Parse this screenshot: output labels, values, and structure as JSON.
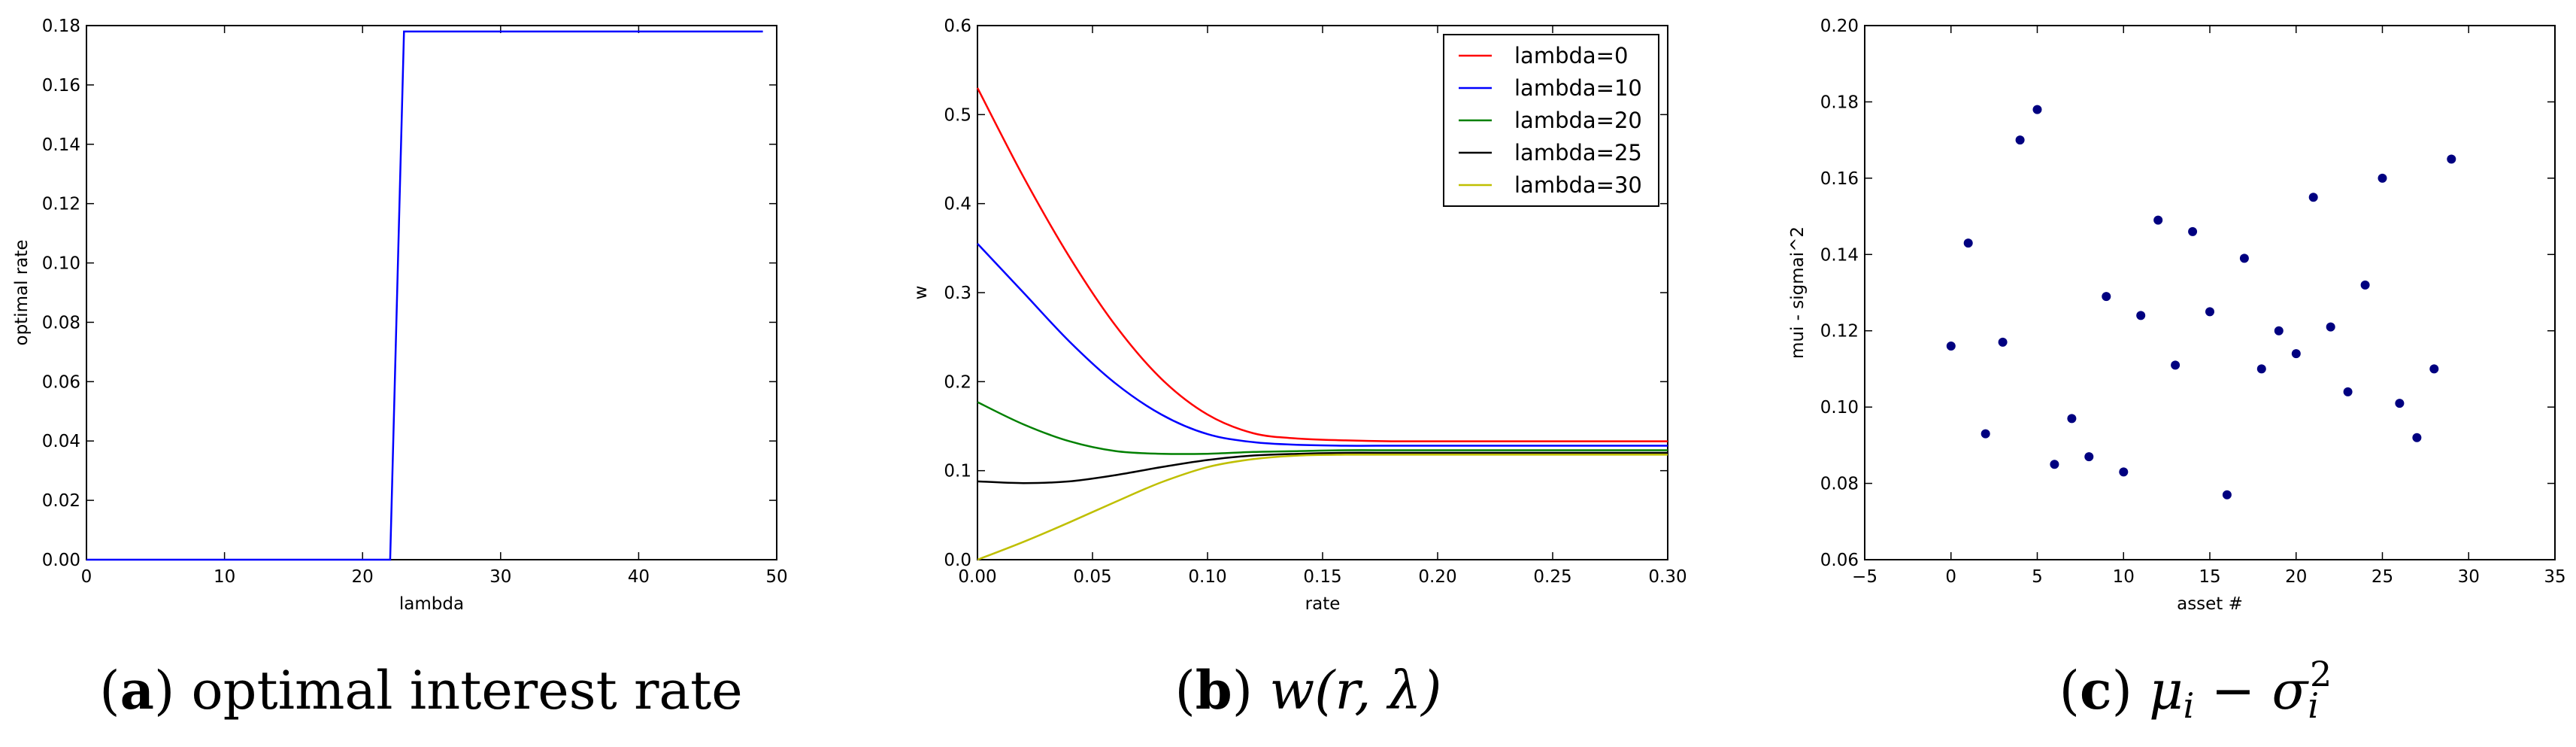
{
  "chart_data": [
    {
      "type": "line",
      "caption": {
        "letter": "a",
        "text": "optimal interest rate"
      },
      "xlabel": "lambda",
      "ylabel": "optimal rate",
      "xlim": [
        0,
        50
      ],
      "ylim": [
        0,
        0.18
      ],
      "xticks": [
        "0",
        "10",
        "20",
        "30",
        "40",
        "50"
      ],
      "yticks": [
        "0.00",
        "0.02",
        "0.04",
        "0.06",
        "0.08",
        "0.10",
        "0.12",
        "0.14",
        "0.16",
        "0.18"
      ],
      "color": "#0000ff",
      "series": [
        {
          "name": "optimal rate",
          "x": [
            0,
            1,
            2,
            3,
            4,
            5,
            6,
            7,
            8,
            9,
            10,
            11,
            12,
            13,
            14,
            15,
            16,
            17,
            18,
            19,
            20,
            21,
            22,
            23,
            24,
            25,
            26,
            27,
            28,
            29,
            30,
            31,
            32,
            33,
            34,
            35,
            36,
            37,
            38,
            39,
            40,
            41,
            42,
            43,
            44,
            45,
            46,
            47,
            48,
            49
          ],
          "y": [
            0,
            0,
            0,
            0,
            0,
            0,
            0,
            0,
            0,
            0,
            0,
            0,
            0,
            0,
            0,
            0,
            0,
            0,
            0,
            0,
            0,
            0,
            0,
            0.178,
            0.178,
            0.178,
            0.178,
            0.178,
            0.178,
            0.178,
            0.178,
            0.178,
            0.178,
            0.178,
            0.178,
            0.178,
            0.178,
            0.178,
            0.178,
            0.178,
            0.178,
            0.178,
            0.178,
            0.178,
            0.178,
            0.178,
            0.178,
            0.178,
            0.178,
            0.178
          ]
        }
      ]
    },
    {
      "type": "line",
      "caption": {
        "letter": "b",
        "math": "w(r, λ)"
      },
      "xlabel": "rate",
      "ylabel": "w",
      "xlim": [
        0,
        0.3
      ],
      "ylim": [
        0,
        0.6
      ],
      "xticks": [
        "0.00",
        "0.05",
        "0.10",
        "0.15",
        "0.20",
        "0.25",
        "0.30"
      ],
      "yticks": [
        "0.0",
        "0.1",
        "0.2",
        "0.3",
        "0.4",
        "0.5",
        "0.6"
      ],
      "legend_position": "top-right",
      "series": [
        {
          "name": "lambda=0",
          "color": "#ff0000",
          "x": [
            0,
            0.02,
            0.04,
            0.06,
            0.08,
            0.1,
            0.12,
            0.14,
            0.16,
            0.18,
            0.2,
            0.25,
            0.3
          ],
          "y": [
            0.53,
            0.43,
            0.34,
            0.263,
            0.203,
            0.163,
            0.142,
            0.136,
            0.134,
            0.133,
            0.133,
            0.133,
            0.133
          ]
        },
        {
          "name": "lambda=10",
          "color": "#0000ff",
          "x": [
            0,
            0.02,
            0.04,
            0.06,
            0.08,
            0.1,
            0.12,
            0.14,
            0.16,
            0.18,
            0.2,
            0.25,
            0.3
          ],
          "y": [
            0.355,
            0.3,
            0.245,
            0.198,
            0.163,
            0.141,
            0.132,
            0.129,
            0.128,
            0.128,
            0.128,
            0.128,
            0.128
          ]
        },
        {
          "name": "lambda=20",
          "color": "#008000",
          "x": [
            0,
            0.02,
            0.04,
            0.06,
            0.08,
            0.1,
            0.12,
            0.14,
            0.16,
            0.18,
            0.2,
            0.25,
            0.3
          ],
          "y": [
            0.177,
            0.152,
            0.133,
            0.122,
            0.119,
            0.119,
            0.121,
            0.122,
            0.123,
            0.123,
            0.123,
            0.123,
            0.123
          ]
        },
        {
          "name": "lambda=25",
          "color": "#000000",
          "x": [
            0,
            0.02,
            0.04,
            0.06,
            0.08,
            0.1,
            0.12,
            0.14,
            0.16,
            0.18,
            0.2,
            0.25,
            0.3
          ],
          "y": [
            0.088,
            0.086,
            0.088,
            0.095,
            0.104,
            0.112,
            0.117,
            0.119,
            0.12,
            0.12,
            0.12,
            0.12,
            0.12
          ]
        },
        {
          "name": "lambda=30",
          "color": "#bfbf00",
          "x": [
            0,
            0.02,
            0.04,
            0.06,
            0.08,
            0.1,
            0.12,
            0.14,
            0.16,
            0.18,
            0.2,
            0.25,
            0.3
          ],
          "y": [
            0.0,
            0.02,
            0.042,
            0.065,
            0.087,
            0.104,
            0.113,
            0.117,
            0.118,
            0.118,
            0.118,
            0.118,
            0.118
          ]
        }
      ]
    },
    {
      "type": "scatter",
      "caption": {
        "letter": "c"
      },
      "xlabel": "asset #",
      "ylabel": "mui - sigmai^2",
      "xlim": [
        -5,
        35
      ],
      "ylim": [
        0.06,
        0.2
      ],
      "xticks": [
        "−5",
        "0",
        "5",
        "10",
        "15",
        "20",
        "25",
        "30",
        "35"
      ],
      "yticks": [
        "0.06",
        "0.08",
        "0.10",
        "0.12",
        "0.14",
        "0.16",
        "0.18",
        "0.20"
      ],
      "color": "#000080",
      "x": [
        0,
        1,
        2,
        3,
        4,
        5,
        6,
        7,
        8,
        9,
        10,
        11,
        12,
        13,
        14,
        15,
        16,
        17,
        18,
        19,
        20,
        21,
        22,
        23,
        24,
        25,
        26,
        27,
        28,
        29
      ],
      "y": [
        0.116,
        0.143,
        0.093,
        0.117,
        0.17,
        0.178,
        0.085,
        0.097,
        0.087,
        0.129,
        0.083,
        0.124,
        0.149,
        0.111,
        0.146,
        0.125,
        0.077,
        0.139,
        0.11,
        0.12,
        0.114,
        0.155,
        0.121,
        0.104,
        0.132,
        0.16,
        0.101,
        0.092,
        0.11,
        0.165
      ]
    }
  ]
}
